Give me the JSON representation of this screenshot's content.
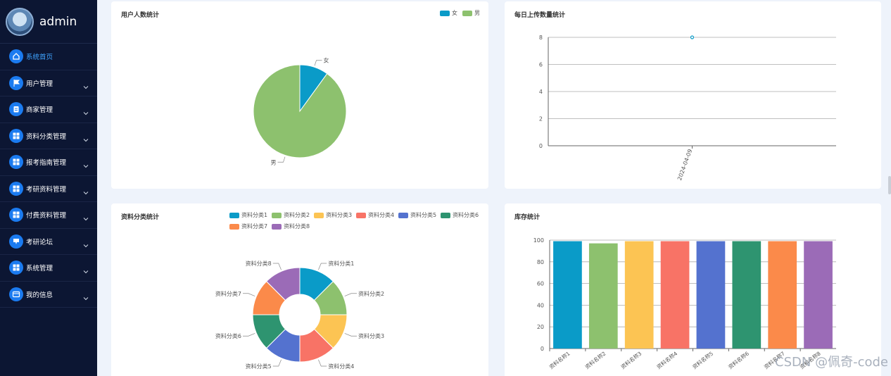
{
  "app": {
    "user_name": "admin"
  },
  "sidebar": {
    "items": [
      {
        "label": "系统首页",
        "icon": "home-icon",
        "active": true,
        "expandable": false
      },
      {
        "label": "用户管理",
        "icon": "flag-icon",
        "active": false,
        "expandable": true
      },
      {
        "label": "商家管理",
        "icon": "store-icon",
        "active": false,
        "expandable": true
      },
      {
        "label": "资料分类管理",
        "icon": "grid-icon",
        "active": false,
        "expandable": true
      },
      {
        "label": "报考指南管理",
        "icon": "grid-icon",
        "active": false,
        "expandable": true
      },
      {
        "label": "考研资料管理",
        "icon": "grid-icon",
        "active": false,
        "expandable": true
      },
      {
        "label": "付费资料管理",
        "icon": "grid-icon",
        "active": false,
        "expandable": true
      },
      {
        "label": "考研论坛",
        "icon": "forum-icon",
        "active": false,
        "expandable": true
      },
      {
        "label": "系统管理",
        "icon": "grid-icon",
        "active": false,
        "expandable": true
      },
      {
        "label": "我的信息",
        "icon": "card-icon",
        "active": false,
        "expandable": true
      }
    ]
  },
  "cards": {
    "gender": {
      "title": "用户人数统计"
    },
    "daily": {
      "title": "每日上传数量统计"
    },
    "category": {
      "title": "资料分类统计"
    },
    "stock": {
      "title": "库存统计"
    }
  },
  "colors": {
    "accent": "#1b7bf0",
    "sidebar_bg": "#0c1633",
    "palette": [
      "#0a9bc8",
      "#8dc16e",
      "#fcc453",
      "#f87366",
      "#5472cf",
      "#2e9470",
      "#fb8a4a",
      "#9b6bb7"
    ]
  },
  "watermark": "CSDN @佩奇-code",
  "chart_data": [
    {
      "id": "gender",
      "type": "pie",
      "title": "用户人数统计",
      "categories": [
        "女",
        "男"
      ],
      "values": [
        1,
        9
      ],
      "legend": "top-right"
    },
    {
      "id": "daily",
      "type": "line",
      "title": "每日上传数量统计",
      "x": [
        "2024-04-09"
      ],
      "values": [
        8
      ],
      "ylim": [
        0,
        8
      ],
      "yticks": [
        0,
        2,
        4,
        6,
        8
      ]
    },
    {
      "id": "category",
      "type": "pie",
      "title": "资料分类统计",
      "donut": true,
      "categories": [
        "资料分类1",
        "资料分类2",
        "资料分类3",
        "资料分类4",
        "资料分类5",
        "资料分类6",
        "资料分类7",
        "资料分类8"
      ],
      "values": [
        1,
        1,
        1,
        1,
        1,
        1,
        1,
        1
      ],
      "legend": "top-right"
    },
    {
      "id": "stock",
      "type": "bar",
      "title": "库存统计",
      "categories": [
        "资料名称1",
        "资料名称2",
        "资料名称3",
        "资料名称4",
        "资料名称5",
        "资料名称6",
        "资料名称7",
        "资料名称8"
      ],
      "values": [
        99,
        97,
        99,
        99,
        99,
        99,
        99,
        99
      ],
      "ylim": [
        0,
        100
      ],
      "yticks": [
        0,
        20,
        40,
        60,
        80,
        100
      ]
    }
  ]
}
